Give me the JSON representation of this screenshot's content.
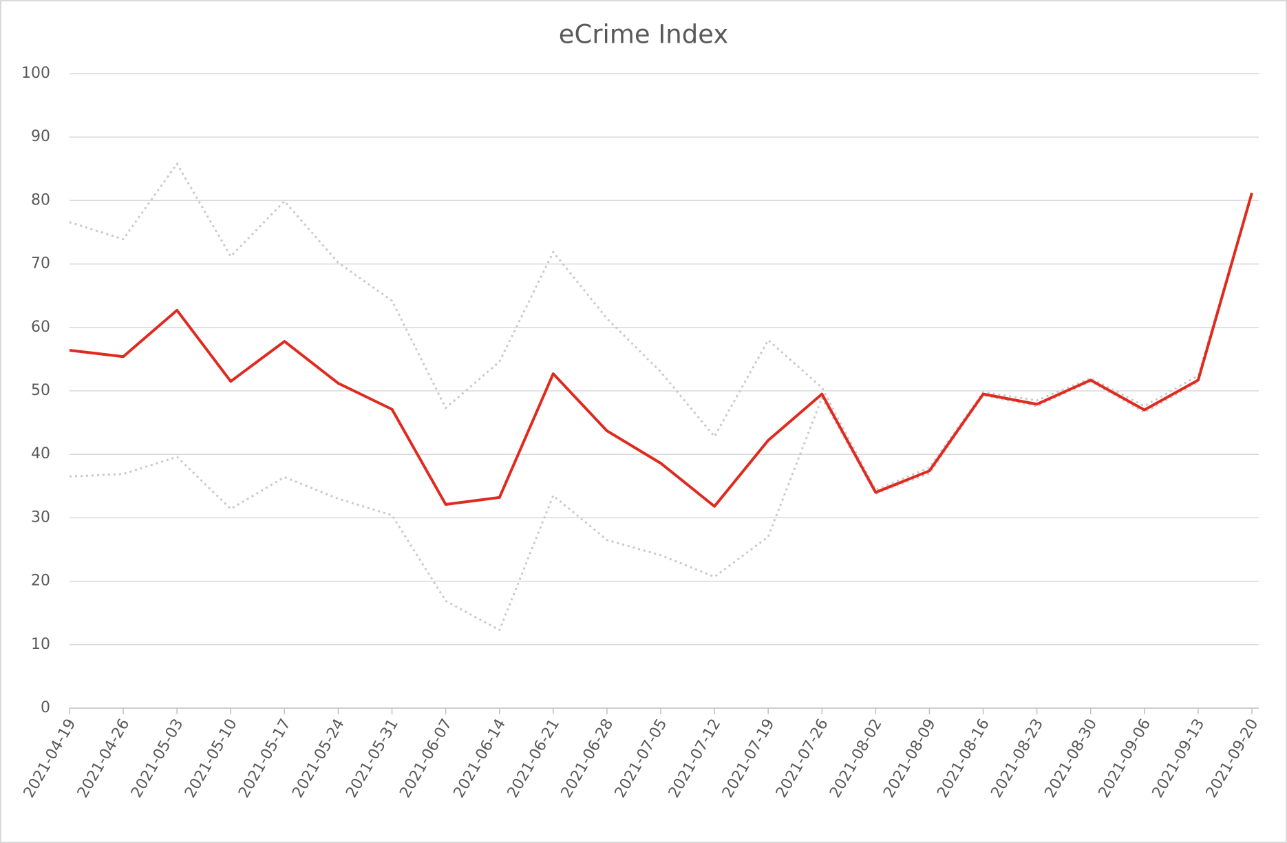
{
  "chart_data": {
    "type": "line",
    "title": "eCrime Index",
    "categories": [
      "2021-04-19",
      "2021-04-26",
      "2021-05-03",
      "2021-05-10",
      "2021-05-17",
      "2021-05-24",
      "2021-05-31",
      "2021-06-07",
      "2021-06-14",
      "2021-06-21",
      "2021-06-28",
      "2021-07-05",
      "2021-07-12",
      "2021-07-19",
      "2021-07-26",
      "2021-08-02",
      "2021-08-09",
      "2021-08-16",
      "2021-08-23",
      "2021-08-30",
      "2021-09-06",
      "2021-09-13",
      "2021-09-20"
    ],
    "series": [
      {
        "color": "#c9c9c9",
        "dash": "dotted",
        "values": [
          76.6,
          73.9,
          85.8,
          71.2,
          79.9,
          70.2,
          64.2,
          47.3,
          54.6,
          71.9,
          61.4,
          53.0,
          42.8,
          58.0,
          50.5,
          34.4,
          37.9,
          49.8,
          48.5,
          52.0,
          47.6,
          52.4,
          81.2
        ]
      },
      {
        "color": "#c9c9c9",
        "dash": "dotted",
        "values": [
          36.5,
          36.9,
          39.6,
          31.4,
          36.4,
          33.0,
          30.4,
          16.9,
          12.3,
          33.5,
          26.5,
          24.1,
          20.7,
          27.0,
          48.9,
          33.8,
          37.0,
          49.3,
          47.6,
          51.5,
          46.6,
          51.4,
          81.2
        ]
      },
      {
        "color": "#e0291f",
        "dash": "solid",
        "values": [
          56.4,
          55.4,
          62.7,
          51.5,
          57.8,
          51.2,
          47.1,
          32.1,
          33.2,
          52.7,
          43.7,
          38.6,
          31.8,
          42.2,
          49.5,
          34.0,
          37.4,
          49.5,
          47.9,
          51.7,
          47.0,
          51.7,
          81.2
        ]
      }
    ],
    "ylim": [
      0,
      100
    ],
    "yticks": [
      0,
      10,
      20,
      30,
      40,
      50,
      60,
      70,
      80,
      90,
      100
    ],
    "grid": true
  }
}
